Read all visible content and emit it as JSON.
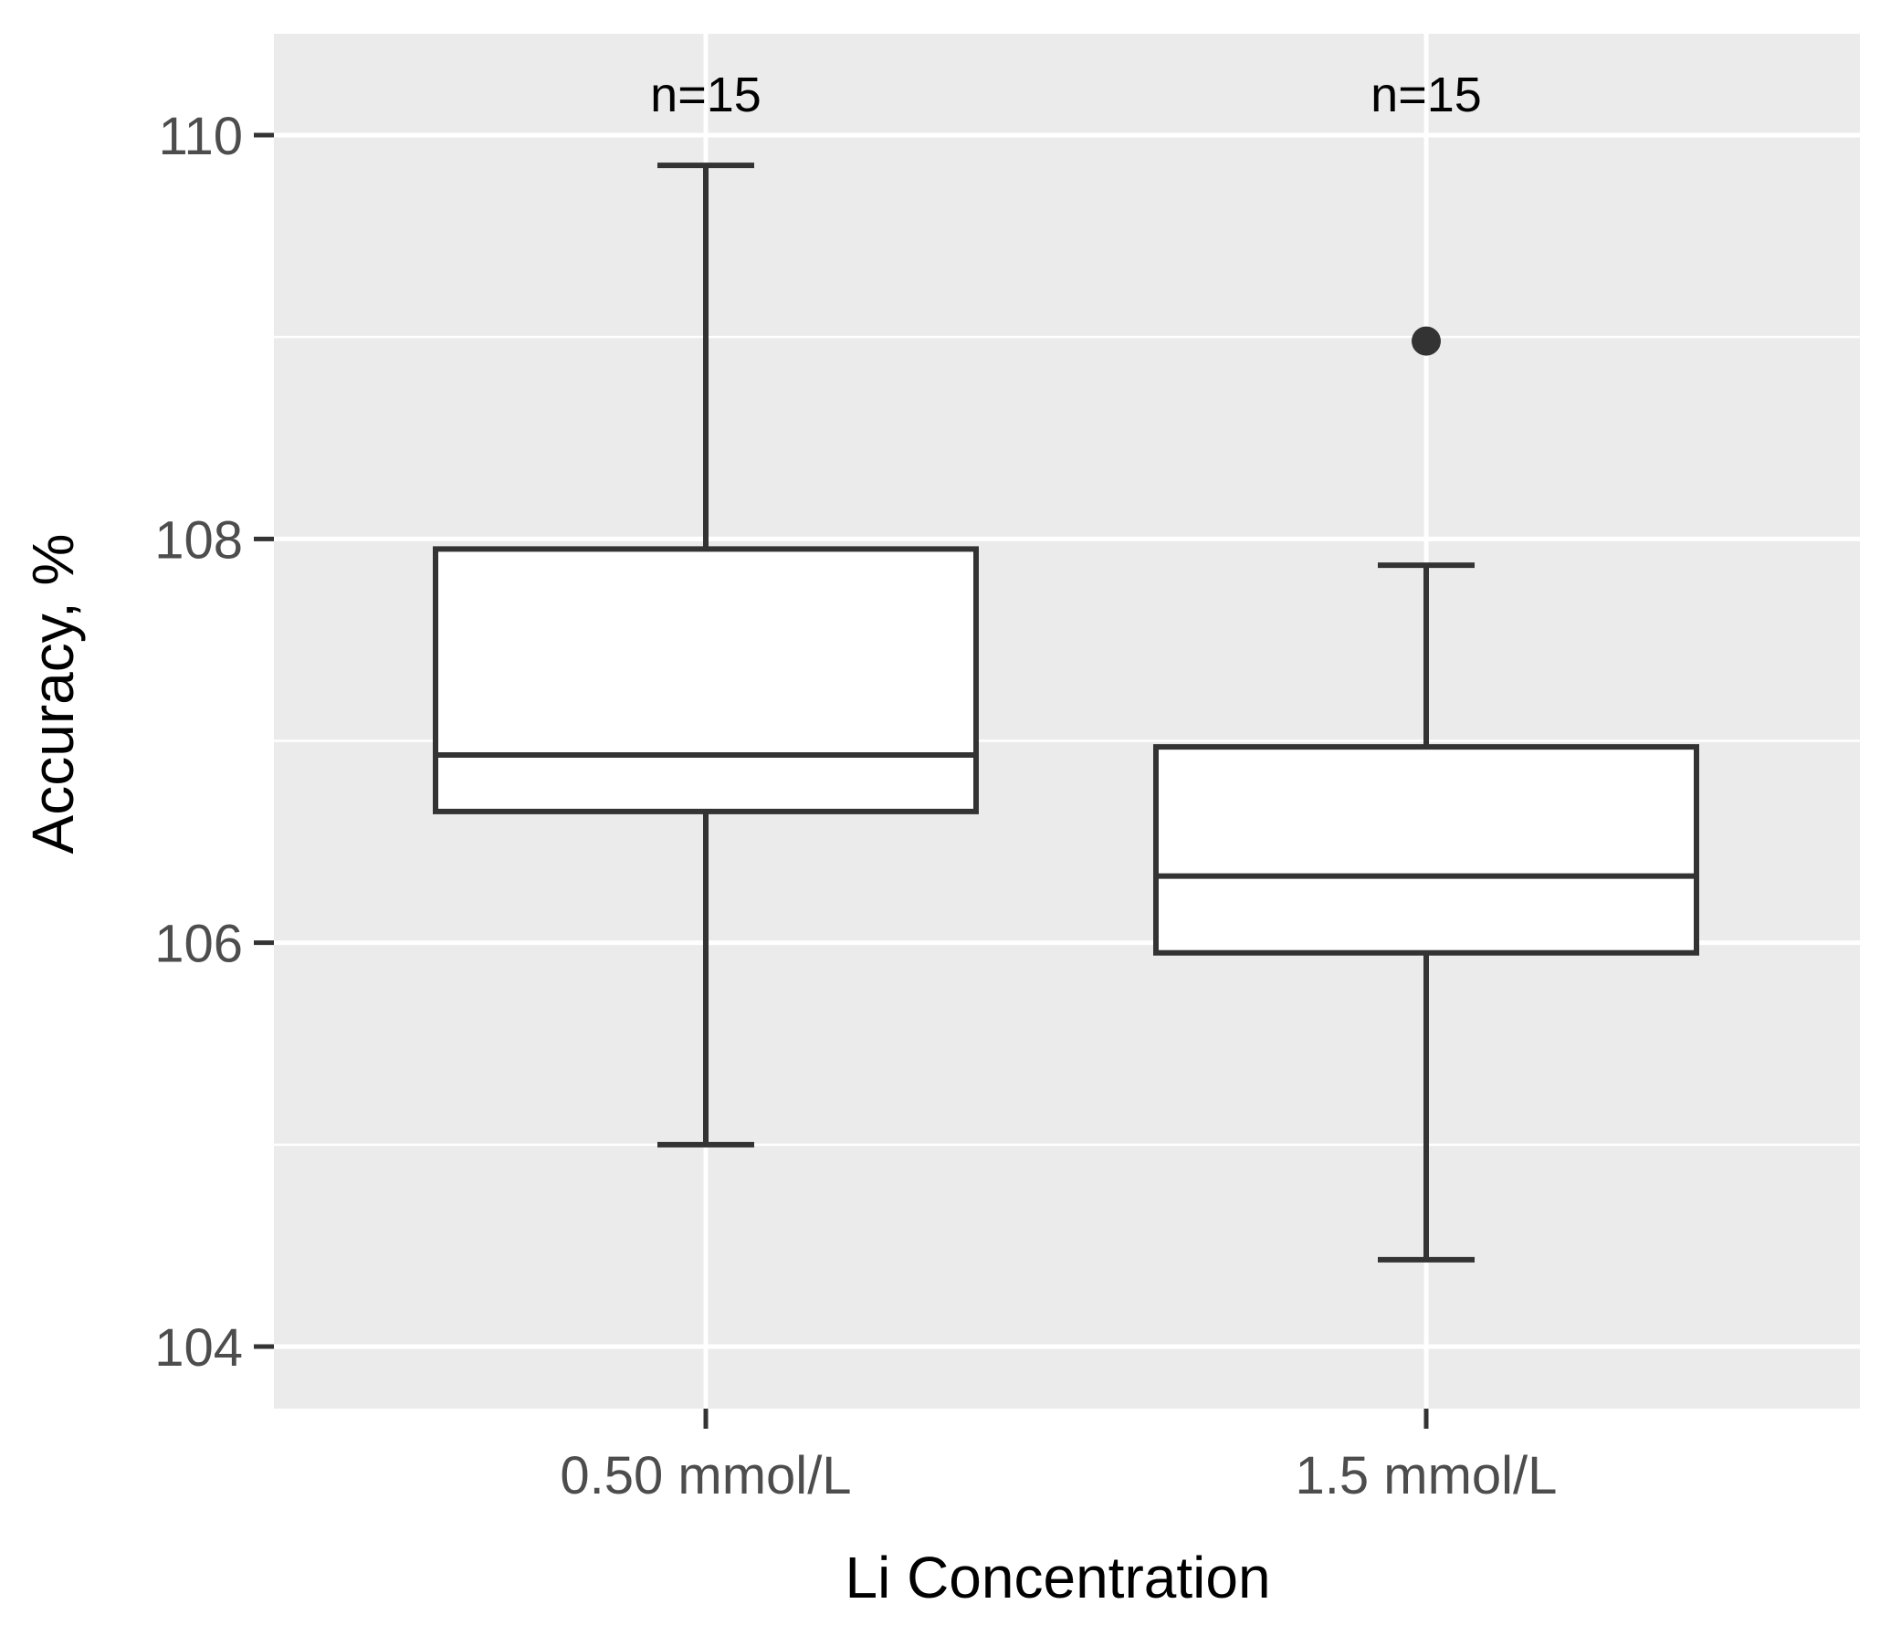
{
  "chart_data": {
    "type": "boxplot",
    "title": "",
    "xlabel": "Li Concentration",
    "ylabel": "Accuracy, %",
    "ylim": [
      103.7,
      110.5
    ],
    "yticks": [
      104,
      106,
      108,
      110
    ],
    "y_tick_labels": [
      "104",
      "106",
      "108",
      "110"
    ],
    "minor_gridlines": [
      105,
      107,
      109
    ],
    "grid": true,
    "categories": [
      "0.50 mmol/L",
      "1.5 mmol/L"
    ],
    "boxes": [
      {
        "category": "0.50 mmol/L",
        "n_label": "n=15",
        "whisker_low": 105.0,
        "q1": 106.65,
        "median": 106.93,
        "q3": 107.95,
        "whisker_high": 109.85,
        "outliers": []
      },
      {
        "category": "1.5 mmol/L",
        "n_label": "n=15",
        "whisker_low": 104.43,
        "q1": 105.95,
        "median": 106.33,
        "q3": 106.97,
        "whisker_high": 107.87,
        "outliers": [
          108.98
        ]
      }
    ],
    "colors": {
      "panel_background": "#ebebeb",
      "gridline": "#ffffff",
      "box_fill": "#ffffff",
      "box_stroke": "#333333",
      "tick_text": "#4d4d4d",
      "title_text": "#000000"
    }
  }
}
